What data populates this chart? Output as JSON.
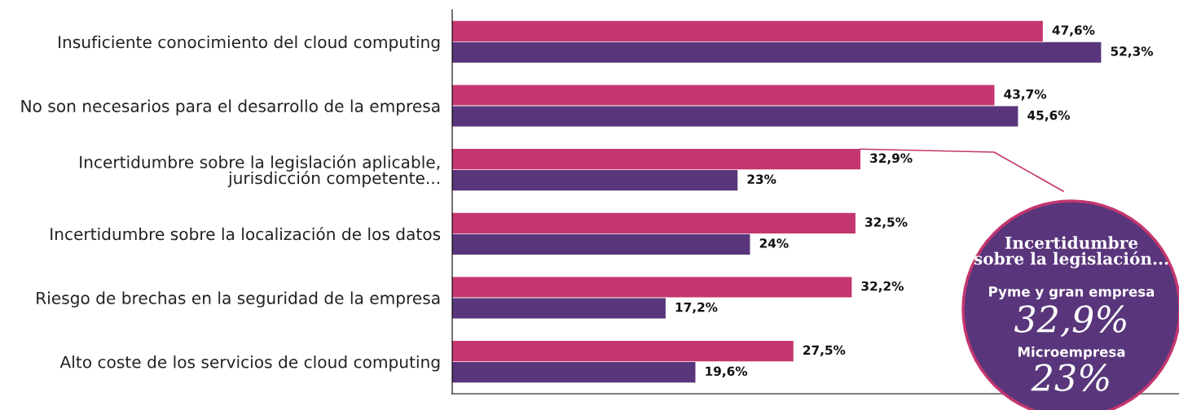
{
  "chart_data": {
    "type": "bar",
    "orientation": "horizontal",
    "categories": [
      "Insuficiente conocimiento del cloud computing",
      "No son necesarios para el desarrollo de la empresa",
      "Incertidumbre sobre la legislación aplicable,\njurisdicción competente...",
      "Incertidumbre sobre la localización de los datos",
      "Riesgo de brechas en la seguridad de la empresa",
      "Alto coste de los servicios de cloud computing"
    ],
    "series": [
      {
        "color": "#c4366f",
        "values": [
          47.6,
          43.7,
          32.9,
          32.5,
          32.2,
          27.5
        ],
        "value_labels": [
          "47,6%",
          "43,7%",
          "32,9%",
          "32,5%",
          "32,2%",
          "27,5%"
        ]
      },
      {
        "color": "#59367b",
        "values": [
          52.3,
          45.6,
          23,
          24,
          17.2,
          19.6
        ],
        "value_labels": [
          "52,3%",
          "45,6%",
          "23%",
          "24%",
          "17,2%",
          "19,6%"
        ]
      }
    ],
    "annotations": [
      "Incertidumbre\nsobre la legislación...",
      "Pyme y gran empresa",
      "32,9%",
      "Microempresa",
      "23%"
    ],
    "grid": false,
    "legend": false
  }
}
